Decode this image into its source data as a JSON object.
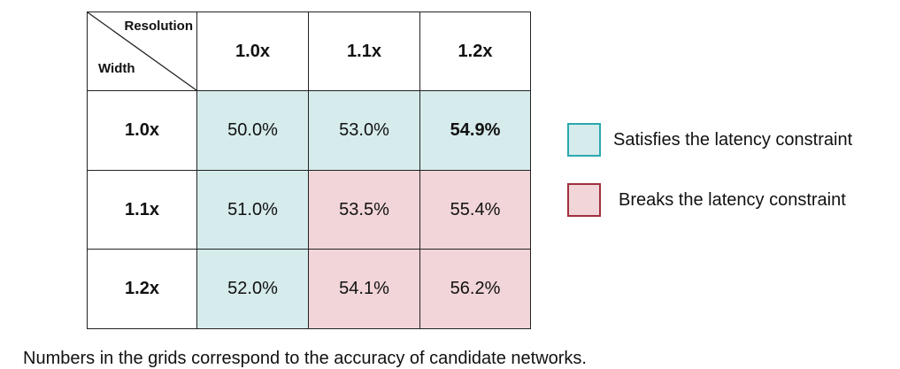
{
  "chart_data": {
    "type": "table",
    "corner": {
      "column_axis_label": "Resolution",
      "row_axis_label": "Width"
    },
    "columns": [
      "1.0x",
      "1.1x",
      "1.2x"
    ],
    "rows": [
      {
        "label": "1.0x",
        "values": [
          "50.0%",
          "53.0%",
          "54.9%"
        ],
        "status": [
          "ok",
          "ok",
          "ok"
        ]
      },
      {
        "label": "1.1x",
        "values": [
          "51.0%",
          "53.5%",
          "55.4%"
        ],
        "status": [
          "ok",
          "bad",
          "bad"
        ]
      },
      {
        "label": "1.2x",
        "values": [
          "52.0%",
          "54.1%",
          "56.2%"
        ],
        "status": [
          "ok",
          "bad",
          "bad"
        ]
      }
    ],
    "highlight": {
      "row": 0,
      "col": 2
    }
  },
  "legend": {
    "satisfies": "Satisfies the latency constraint",
    "breaks": "Breaks the latency constraint"
  },
  "caption": "Numbers in the grids correspond to the accuracy of candidate networks.",
  "colors": {
    "satisfies_fill": "#d6ebec",
    "satisfies_border": "#2aa8b0",
    "breaks_fill": "#f1d5d9",
    "breaks_border": "#a0303e"
  }
}
